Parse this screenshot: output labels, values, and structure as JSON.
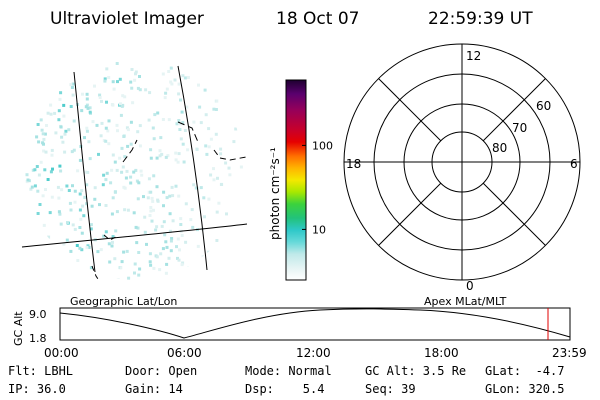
{
  "header": {
    "instrument": "Ultraviolet Imager",
    "date": "18 Oct 07",
    "time": "22:59:39 UT"
  },
  "colorbar": {
    "label": "photon cm⁻²s⁻¹",
    "ticks": [
      "100",
      "10"
    ],
    "tick_values": [
      100,
      10
    ],
    "range": [
      2.5,
      600
    ],
    "colors": [
      "#ffffff",
      "#e6f4f4",
      "#bfe9e9",
      "#66d9d9",
      "#2ec8c8",
      "#22c27a",
      "#3cd23c",
      "#a8e800",
      "#f4e800",
      "#ffb400",
      "#ff6e00",
      "#e60000",
      "#c8002a",
      "#96005a",
      "#5a006e",
      "#1e0030"
    ]
  },
  "left_panel": {
    "label": "Geographic Lat/Lon"
  },
  "polar_plot": {
    "label": "Apex MLat/MLT",
    "mlt_labels": [
      "12",
      "18",
      "6",
      "0"
    ],
    "mlat_labels": [
      "60",
      "70",
      "80"
    ]
  },
  "altitude_strip": {
    "ylabel": "GC Alt",
    "yticks": [
      "9.0",
      "1.8"
    ],
    "ytick_values": [
      9.0,
      1.8
    ],
    "xticks": [
      "00:00",
      "06:00",
      "12:00",
      "18:00",
      "23:59"
    ],
    "marker_color": "#e00000"
  },
  "footer": {
    "flt": "Flt: LBHL",
    "ip": "IP: 36.0",
    "door": "Door: Open",
    "gain": "Gain: 14",
    "mode": "Mode: Normal",
    "dsp": "Dsp:    5.4",
    "gcalt": "GC Alt: 3.5 Re",
    "seq": "Seq: 39",
    "glat": "GLat:  -4.7",
    "glon": "GLon: 320.5"
  }
}
